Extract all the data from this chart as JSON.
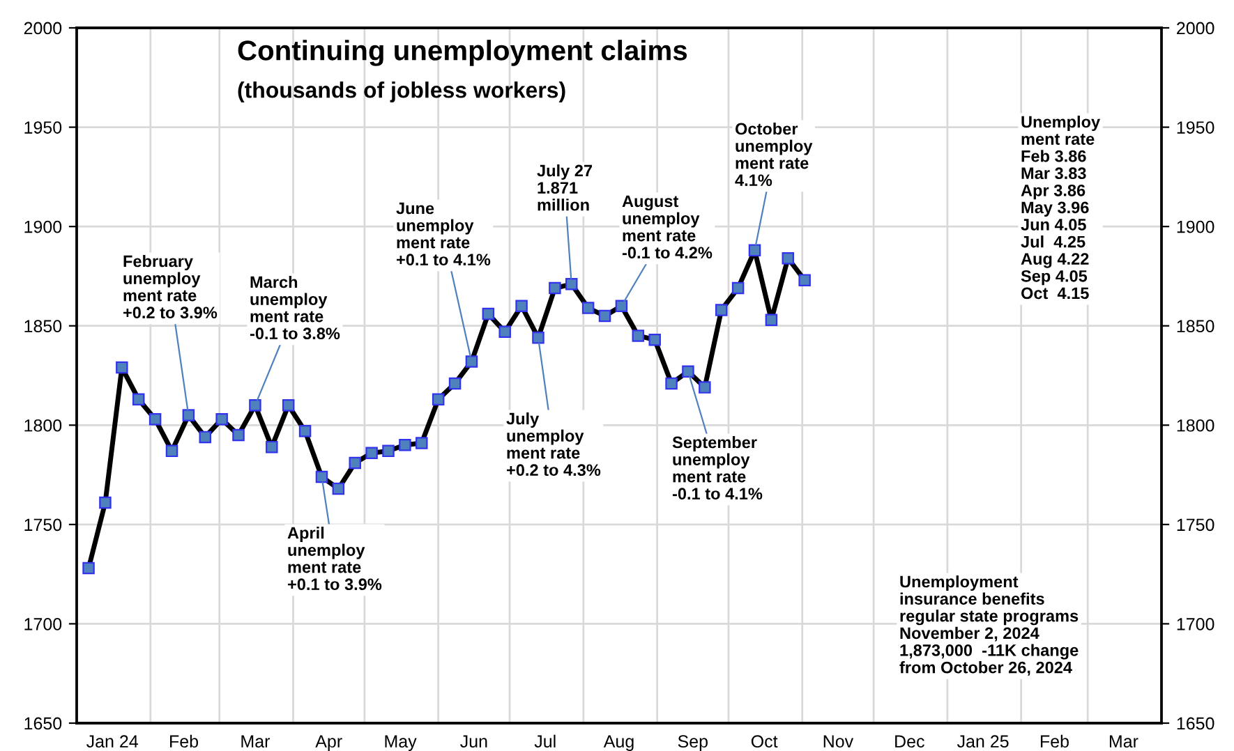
{
  "chart_data": {
    "type": "line",
    "title": "Continuing unemployment claims",
    "subtitle": "(thousands of jobless workers)",
    "x": [
      "2024-01-06",
      "2024-01-13",
      "2024-01-20",
      "2024-01-27",
      "2024-02-03",
      "2024-02-10",
      "2024-02-17",
      "2024-02-24",
      "2024-03-02",
      "2024-03-09",
      "2024-03-16",
      "2024-03-23",
      "2024-03-30",
      "2024-04-06",
      "2024-04-13",
      "2024-04-20",
      "2024-04-27",
      "2024-05-04",
      "2024-05-11",
      "2024-05-18",
      "2024-05-25",
      "2024-06-01",
      "2024-06-08",
      "2024-06-15",
      "2024-06-22",
      "2024-06-29",
      "2024-07-06",
      "2024-07-13",
      "2024-07-20",
      "2024-07-27",
      "2024-08-03",
      "2024-08-10",
      "2024-08-17",
      "2024-08-24",
      "2024-08-31",
      "2024-09-07",
      "2024-09-14",
      "2024-09-21",
      "2024-09-28",
      "2024-10-05",
      "2024-10-12",
      "2024-10-19",
      "2024-10-26",
      "2024-11-02"
    ],
    "series": [
      {
        "color": "#000000",
        "values": [
          1728,
          1761,
          1829,
          1813,
          1803,
          1787,
          1805,
          1794,
          1803,
          1795,
          1810,
          1789,
          1810,
          1797,
          1774,
          1768,
          1781,
          1786,
          1787,
          1790,
          1791,
          1813,
          1821,
          1832,
          1856,
          1847,
          1860,
          1844,
          1869,
          1871,
          1859,
          1855,
          1860,
          1845,
          1843,
          1821,
          1827,
          1819,
          1858,
          1869,
          1888,
          1853,
          1884,
          1873
        ]
      }
    ],
    "marker": "square",
    "line_style": "solid",
    "xlim": [
      "2024-01-01",
      "2025-04-01"
    ],
    "xticks": [
      {
        "value": "2024-02-01",
        "label": null
      },
      {
        "value": "2024-03-01",
        "label": null
      },
      {
        "value": "2024-04-01",
        "label": null
      },
      {
        "value": "2024-05-01",
        "label": null
      },
      {
        "value": "2024-06-01",
        "label": null
      },
      {
        "value": "2024-07-01",
        "label": null
      },
      {
        "value": "2024-08-01",
        "label": null
      },
      {
        "value": "2024-09-01",
        "label": null
      },
      {
        "value": "2024-10-01",
        "label": null
      },
      {
        "value": "2024-11-01",
        "label": null
      },
      {
        "value": "2024-12-01",
        "label": null
      },
      {
        "value": "2025-01-01",
        "label": null
      },
      {
        "value": "2025-02-01",
        "label": null
      },
      {
        "value": "2025-03-01",
        "label": null
      },
      {
        "value": "2024-01-16",
        "label": "Jan 24"
      },
      {
        "value": "2024-02-15",
        "label": "Feb"
      },
      {
        "value": "2024-03-16",
        "label": "Mar"
      },
      {
        "value": "2024-04-16",
        "label": "Apr"
      },
      {
        "value": "2024-05-16",
        "label": "May"
      },
      {
        "value": "2024-06-16",
        "label": "Jun"
      },
      {
        "value": "2024-07-16",
        "label": "Jul"
      },
      {
        "value": "2024-08-16",
        "label": "Aug"
      },
      {
        "value": "2024-09-16",
        "label": "Sep"
      },
      {
        "value": "2024-10-16",
        "label": "Oct"
      },
      {
        "value": "2024-11-16",
        "label": "Nov"
      },
      {
        "value": "2024-12-16",
        "label": "Dec"
      },
      {
        "value": "2025-01-16",
        "label": "Jan 25"
      },
      {
        "value": "2025-02-15",
        "label": "Feb"
      },
      {
        "value": "2025-03-16",
        "label": "Mar"
      }
    ],
    "ylim": [
      1650,
      2000
    ],
    "yticks": [
      1650,
      1700,
      1750,
      1800,
      1850,
      1900,
      1950,
      2000
    ],
    "y2lim": [
      1650,
      2000
    ],
    "y2ticks": [
      1650,
      1700,
      1750,
      1800,
      1850,
      1900,
      1950,
      2000
    ],
    "grid": true,
    "annotations": [
      {
        "text": "February\nunemploy\nment rate\n+0.2 to 3.9%",
        "x": "2024-02-17",
        "y": 1805
      },
      {
        "text": "March\nunemploy\nment rate\n-0.1 to 3.8%",
        "x": "2024-03-16",
        "y": 1810
      },
      {
        "text": "April\nunemploy\nment rate\n+0.1 to 3.9%",
        "x": "2024-04-13",
        "y": 1774
      },
      {
        "text": "June\nunemploy\nment rate\n+0.1 to 4.1%",
        "x": "2024-06-15",
        "y": 1832
      },
      {
        "text": "July\nunemploy\nment rate\n+0.2 to 4.3%",
        "x": "2024-07-13",
        "y": 1844
      },
      {
        "text": "July 27\n1.871\nmillion",
        "x": "2024-07-27",
        "y": 1871
      },
      {
        "text": "August\nunemploy\nment rate\n-0.1 to 4.2%",
        "x": "2024-08-17",
        "y": 1860
      },
      {
        "text": "September\nunemploy\nment rate\n-0.1 to 4.1%",
        "x": "2024-09-14",
        "y": 1827
      },
      {
        "text": "October\nunemploy\nment rate\n4.1%",
        "x": "2024-10-12",
        "y": 1888
      },
      "Unemploy\nment rate\nFeb 3.86\nMar 3.83\nApr 3.86\nMay 3.96\nJun 4.05\nJul  4.25\nAug 4.22\nSep 4.05\nOct  4.15",
      "Unemployment\ninsurance benefits\nregular state programs\nNovember 2, 2024\n1,873,000  -11K change\nfrom October 26, 2024"
    ]
  }
}
